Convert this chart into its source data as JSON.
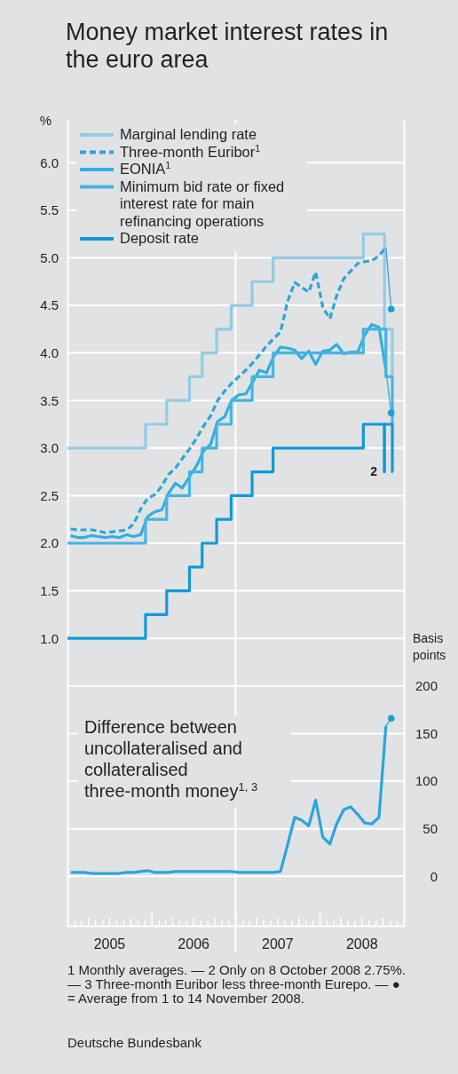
{
  "chart_data": [
    {
      "type": "line",
      "title": "Money market interest rates in the euro area",
      "ylabel": "%",
      "xlim": [
        "2005-01-01",
        "2009-01-01"
      ],
      "ylim": [
        0.75,
        6.45
      ],
      "yticks": [
        {
          "value": 1,
          "label": "1.0"
        },
        {
          "value": 1.5,
          "label": "1.5"
        },
        {
          "value": 2,
          "label": "2.0"
        },
        {
          "value": 2.5,
          "label": "2.5"
        },
        {
          "value": 3,
          "label": "3.0"
        },
        {
          "value": 3.5,
          "label": "3.5"
        },
        {
          "value": 4,
          "label": "4.0"
        },
        {
          "value": 4.5,
          "label": "4.5"
        },
        {
          "value": 5,
          "label": "5.0"
        },
        {
          "value": 5.5,
          "label": "5.5"
        },
        {
          "value": 6,
          "label": "6.0"
        }
      ],
      "grid": "y",
      "legend": "top left",
      "tick_labels": "y",
      "ref_lines": [
        {
          "axis": "x",
          "value": "2007-01-01",
          "color": "#ffffff"
        }
      ],
      "annotations": [
        {
          "text": "2",
          "x": "2008-10-08",
          "y": 2.75
        }
      ],
      "series": [
        {
          "name": "Marginal lending rate",
          "type": "step",
          "color": "#93cbe6",
          "x": [
            "2005-01-01",
            "2005-12-06",
            "2006-03-08",
            "2006-06-15",
            "2006-08-09",
            "2006-10-11",
            "2006-12-13",
            "2007-03-14",
            "2007-06-13",
            "2008-07-09",
            "2008-10-09",
            "2008-11-12",
            "2008-11-14"
          ],
          "values": [
            3.0,
            3.25,
            3.5,
            3.75,
            4.0,
            4.25,
            4.5,
            4.75,
            5.0,
            5.25,
            4.25,
            3.75,
            3.75
          ]
        },
        {
          "name": "Three-month Euribor$^{1}$",
          "line_style": "dashed",
          "color": "#2aa6da",
          "x": [
            "2005-01-15",
            "2005-02-15",
            "2005-03-15",
            "2005-04-15",
            "2005-05-15",
            "2005-06-15",
            "2005-07-15",
            "2005-08-15",
            "2005-09-15",
            "2005-10-15",
            "2005-11-15",
            "2005-12-15",
            "2006-01-15",
            "2006-02-15",
            "2006-03-15",
            "2006-04-15",
            "2006-05-15",
            "2006-06-15",
            "2006-07-15",
            "2006-08-15",
            "2006-09-15",
            "2006-10-15",
            "2006-11-15",
            "2006-12-15",
            "2007-01-15",
            "2007-02-15",
            "2007-03-15",
            "2007-04-15",
            "2007-05-15",
            "2007-06-15",
            "2007-07-15",
            "2007-08-15",
            "2007-09-15",
            "2007-10-15",
            "2007-11-15",
            "2007-12-15",
            "2008-01-15",
            "2008-02-15",
            "2008-03-15",
            "2008-04-15",
            "2008-05-15",
            "2008-06-15",
            "2008-07-15",
            "2008-08-15",
            "2008-09-15",
            "2008-10-15"
          ],
          "values": [
            2.15,
            2.14,
            2.14,
            2.14,
            2.13,
            2.11,
            2.12,
            2.13,
            2.14,
            2.2,
            2.36,
            2.47,
            2.51,
            2.6,
            2.72,
            2.79,
            2.89,
            2.99,
            3.1,
            3.23,
            3.34,
            3.5,
            3.6,
            3.68,
            3.75,
            3.82,
            3.89,
            3.98,
            4.07,
            4.15,
            4.22,
            4.54,
            4.74,
            4.69,
            4.64,
            4.85,
            4.48,
            4.36,
            4.6,
            4.78,
            4.86,
            4.94,
            4.96,
            4.97,
            5.02,
            5.11
          ]
        },
        {
          "name": "EONIA$^{1}$",
          "color": "#31aee0",
          "x": [
            "2005-01-15",
            "2005-02-15",
            "2005-03-15",
            "2005-04-15",
            "2005-05-15",
            "2005-06-15",
            "2005-07-15",
            "2005-08-15",
            "2005-09-15",
            "2005-10-15",
            "2005-11-15",
            "2005-12-15",
            "2006-01-15",
            "2006-02-15",
            "2006-03-15",
            "2006-04-15",
            "2006-05-15",
            "2006-06-15",
            "2006-07-15",
            "2006-08-15",
            "2006-09-15",
            "2006-10-15",
            "2006-11-15",
            "2006-12-15",
            "2007-01-15",
            "2007-02-15",
            "2007-03-15",
            "2007-04-15",
            "2007-05-15",
            "2007-06-15",
            "2007-07-15",
            "2007-08-15",
            "2007-09-15",
            "2007-10-15",
            "2007-11-15",
            "2007-12-15",
            "2008-01-15",
            "2008-02-15",
            "2008-03-15",
            "2008-04-15",
            "2008-05-15",
            "2008-06-15",
            "2008-07-15",
            "2008-08-15",
            "2008-09-15",
            "2008-10-15"
          ],
          "values": [
            2.08,
            2.06,
            2.06,
            2.08,
            2.07,
            2.06,
            2.07,
            2.06,
            2.09,
            2.07,
            2.09,
            2.28,
            2.33,
            2.35,
            2.52,
            2.63,
            2.58,
            2.7,
            2.81,
            2.97,
            3.04,
            3.28,
            3.33,
            3.5,
            3.56,
            3.57,
            3.69,
            3.82,
            3.79,
            3.96,
            4.06,
            4.05,
            4.03,
            3.94,
            4.02,
            3.88,
            4.02,
            4.03,
            4.09,
            3.99,
            4.01,
            4.01,
            4.19,
            4.3,
            4.27,
            3.82
          ]
        },
        {
          "name": "Minimum bid rate or fixed interest rate for main refinancing operations",
          "type": "step",
          "color": "#45b5e2",
          "x": [
            "2005-01-01",
            "2005-12-06",
            "2006-03-08",
            "2006-06-15",
            "2006-08-09",
            "2006-10-11",
            "2006-12-13",
            "2007-03-14",
            "2007-06-13",
            "2008-07-09",
            "2008-10-15",
            "2008-11-12",
            "2008-11-14"
          ],
          "values": [
            2.0,
            2.25,
            2.5,
            2.75,
            3.0,
            3.25,
            3.5,
            3.75,
            4.0,
            4.25,
            3.75,
            3.25,
            3.25
          ]
        },
        {
          "name": "Deposit rate",
          "type": "step",
          "color": "#0f9bd7",
          "x": [
            "2005-01-01",
            "2005-12-06",
            "2006-03-08",
            "2006-06-15",
            "2006-08-09",
            "2006-10-11",
            "2006-12-13",
            "2007-03-14",
            "2007-06-13",
            "2008-07-09",
            "2008-10-08",
            "2008-10-09",
            "2008-11-12",
            "2008-11-14"
          ],
          "values": [
            1.0,
            1.25,
            1.5,
            1.75,
            2.0,
            2.25,
            2.5,
            2.75,
            3.0,
            3.25,
            2.75,
            3.25,
            2.75,
            2.75
          ]
        },
        {
          "line_style": "solid",
          "color": "#2aa6da",
          "x": [
            "2008-10-15",
            "2008-11-07"
          ],
          "values": [
            5.11,
            4.46
          ]
        },
        {
          "line_style": "solid",
          "color": "#31aee0",
          "x": [
            "2008-10-15",
            "2008-11-07"
          ],
          "values": [
            3.82,
            3.37
          ]
        },
        {
          "type": "scatter",
          "marker": "circle",
          "color": "#1a9fd8",
          "x": [
            "2008-11-07",
            "2008-11-07"
          ],
          "values": [
            4.46,
            3.37
          ]
        }
      ]
    },
    {
      "type": "line",
      "title": "Difference between uncollateralised and collateralised three-month money$^{1, 3}$",
      "ylabel": "Basis points",
      "xlim": [
        "2005-01-01",
        "2009-01-01"
      ],
      "ylim": [
        -52,
        225
      ],
      "yticks": [
        0,
        50,
        100,
        150,
        200
      ],
      "xticks": [
        {
          "value": "2005-02-01",
          "label": null
        },
        {
          "value": "2005-03-01",
          "label": null
        },
        {
          "value": "2005-04-01",
          "label": null
        },
        {
          "value": "2005-05-01",
          "label": null
        },
        {
          "value": "2005-06-01",
          "label": null
        },
        {
          "value": "2005-07-01",
          "label": "2005"
        },
        {
          "value": "2005-08-01",
          "label": null
        },
        {
          "value": "2005-09-01",
          "label": null
        },
        {
          "value": "2005-10-01",
          "label": null
        },
        {
          "value": "2005-11-01",
          "label": null
        },
        {
          "value": "2005-12-01",
          "label": null
        },
        {
          "value": "2006-01-01",
          "label": null
        },
        {
          "value": "2006-02-01",
          "label": null
        },
        {
          "value": "2006-03-01",
          "label": null
        },
        {
          "value": "2006-04-01",
          "label": null
        },
        {
          "value": "2006-05-01",
          "label": null
        },
        {
          "value": "2006-06-01",
          "label": null
        },
        {
          "value": "2006-07-01",
          "label": "2006"
        },
        {
          "value": "2006-08-01",
          "label": null
        },
        {
          "value": "2006-09-01",
          "label": null
        },
        {
          "value": "2006-10-01",
          "label": null
        },
        {
          "value": "2006-11-01",
          "label": null
        },
        {
          "value": "2006-12-01",
          "label": null
        },
        {
          "value": "2007-01-01",
          "label": null
        },
        {
          "value": "2007-02-01",
          "label": null
        },
        {
          "value": "2007-03-01",
          "label": null
        },
        {
          "value": "2007-04-01",
          "label": null
        },
        {
          "value": "2007-05-01",
          "label": null
        },
        {
          "value": "2007-06-01",
          "label": null
        },
        {
          "value": "2007-07-01",
          "label": "2007"
        },
        {
          "value": "2007-08-01",
          "label": null
        },
        {
          "value": "2007-09-01",
          "label": null
        },
        {
          "value": "2007-10-01",
          "label": null
        },
        {
          "value": "2007-11-01",
          "label": null
        },
        {
          "value": "2007-12-01",
          "label": null
        },
        {
          "value": "2008-01-01",
          "label": null
        },
        {
          "value": "2008-02-01",
          "label": null
        },
        {
          "value": "2008-03-01",
          "label": null
        },
        {
          "value": "2008-04-01",
          "label": null
        },
        {
          "value": "2008-05-01",
          "label": null
        },
        {
          "value": "2008-06-01",
          "label": null
        },
        {
          "value": "2008-07-01",
          "label": "2008"
        },
        {
          "value": "2008-08-01",
          "label": null
        },
        {
          "value": "2008-09-01",
          "label": null
        },
        {
          "value": "2008-10-01",
          "label": null
        },
        {
          "value": "2008-11-01",
          "label": null
        },
        {
          "value": "2008-12-01",
          "label": null
        }
      ],
      "grid": "y",
      "ref_lines": [
        {
          "axis": "x",
          "value": "2007-01-01",
          "color": "#ffffff"
        }
      ],
      "annotations": [
        "1 Monthly averages. — 2 Only on 8 October 2008 2.75%. — 3 Three-month Euribor less three-month Eurepo. — ● = Average from 1 to 14 November 2008.",
        "Deutsche Bundesbank"
      ],
      "series": [
        {
          "color": "#2aa6da",
          "x": [
            "2005-01-15",
            "2005-02-15",
            "2005-03-15",
            "2005-04-15",
            "2005-05-15",
            "2005-06-15",
            "2005-07-15",
            "2005-08-15",
            "2005-09-15",
            "2005-10-15",
            "2005-11-15",
            "2005-12-15",
            "2006-01-15",
            "2006-02-15",
            "2006-03-15",
            "2006-04-15",
            "2006-05-15",
            "2006-06-15",
            "2006-07-15",
            "2006-08-15",
            "2006-09-15",
            "2006-10-15",
            "2006-11-15",
            "2006-12-15",
            "2007-01-15",
            "2007-02-15",
            "2007-03-15",
            "2007-04-15",
            "2007-05-15",
            "2007-06-15",
            "2007-07-15",
            "2007-08-15",
            "2007-09-15",
            "2007-10-15",
            "2007-11-15",
            "2007-12-15",
            "2008-01-15",
            "2008-02-15",
            "2008-03-15",
            "2008-04-15",
            "2008-05-15",
            "2008-06-15",
            "2008-07-15",
            "2008-08-15",
            "2008-09-15",
            "2008-10-15"
          ],
          "values": [
            4,
            4,
            4,
            3,
            3,
            3,
            3,
            3,
            4,
            4,
            5,
            6,
            4,
            4,
            4,
            5,
            5,
            5,
            5,
            5,
            5,
            5,
            5,
            5,
            4,
            4,
            4,
            4,
            4,
            4,
            5,
            33,
            62,
            59,
            53,
            80,
            41,
            34,
            55,
            70,
            73,
            65,
            56,
            55,
            62,
            158
          ]
        },
        {
          "line_style": "solid",
          "color": "#2aa6da",
          "x": [
            "2008-10-15",
            "2008-11-07"
          ],
          "values": [
            158,
            166
          ]
        },
        {
          "type": "scatter",
          "marker": "circle",
          "color": "#1a9fd8",
          "x": [
            "2008-11-07"
          ],
          "values": [
            166
          ]
        }
      ]
    }
  ]
}
